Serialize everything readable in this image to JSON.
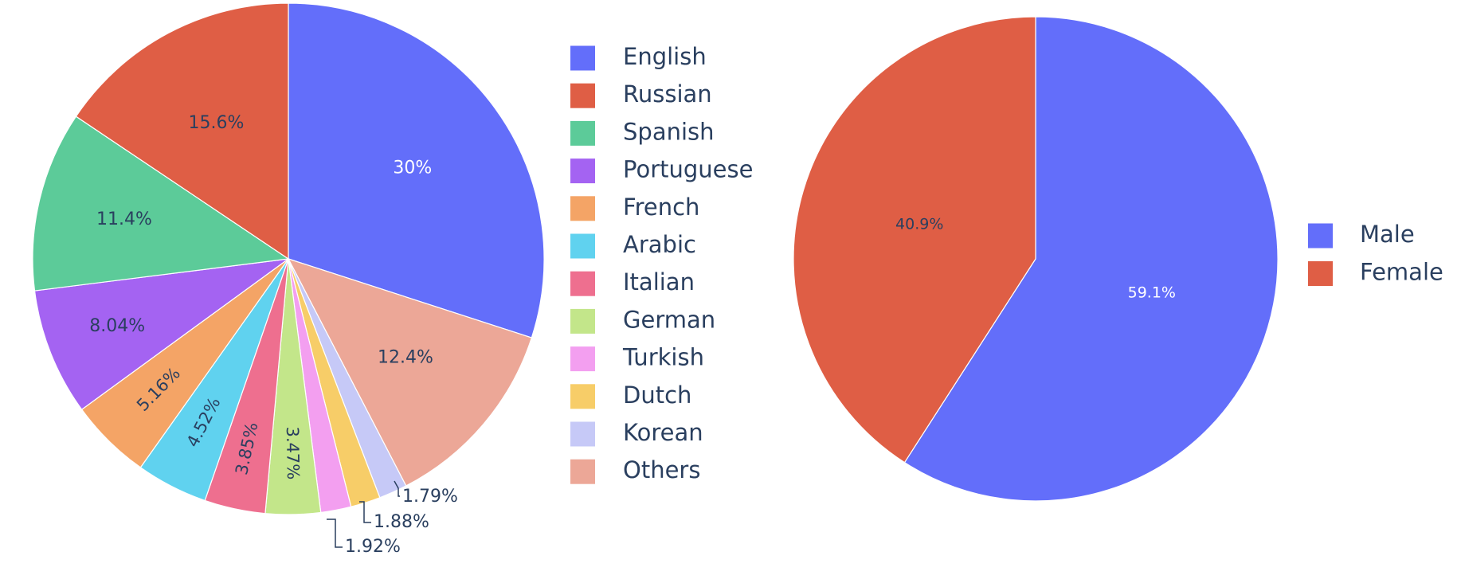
{
  "chart_data": [
    {
      "type": "pie",
      "title": "",
      "legend_placement": "right",
      "slices": [
        {
          "label": "English",
          "value": 30,
          "text": "30%",
          "color": "#636efa"
        },
        {
          "label": "Others",
          "value": 12.4,
          "text": "12.4%",
          "color": "#eca797"
        },
        {
          "label": "Korean",
          "value": 1.79,
          "text": "1.79%",
          "color": "#c6c9f7"
        },
        {
          "label": "Dutch",
          "value": 1.88,
          "text": "1.88%",
          "color": "#f7cd68"
        },
        {
          "label": "Turkish",
          "value": 1.92,
          "text": "1.92%",
          "color": "#f39ff0"
        },
        {
          "label": "German",
          "value": 3.47,
          "text": "3.47%",
          "color": "#c3e68a"
        },
        {
          "label": "Italian",
          "value": 3.85,
          "text": "3.85%",
          "color": "#ee6f8f"
        },
        {
          "label": "Arabic",
          "value": 4.52,
          "text": "4.52%",
          "color": "#60d2ef"
        },
        {
          "label": "French",
          "value": 5.16,
          "text": "5.16%",
          "color": "#f4a466"
        },
        {
          "label": "Portuguese",
          "value": 8.04,
          "text": "8.04%",
          "color": "#a463f2"
        },
        {
          "label": "Spanish",
          "value": 11.4,
          "text": "11.4%",
          "color": "#5ccb99"
        },
        {
          "label": "Russian",
          "value": 15.6,
          "text": "15.6%",
          "color": "#df5e45"
        }
      ],
      "legend": [
        "English",
        "Russian",
        "Spanish",
        "Portuguese",
        "French",
        "Arabic",
        "Italian",
        "German",
        "Turkish",
        "Dutch",
        "Korean",
        "Others"
      ]
    },
    {
      "type": "pie",
      "title": "",
      "legend_placement": "right",
      "slices": [
        {
          "label": "Male",
          "value": 59.1,
          "text": "59.1%",
          "color": "#636efa"
        },
        {
          "label": "Female",
          "value": 40.9,
          "text": "40.9%",
          "color": "#df5e45"
        }
      ],
      "legend": [
        "Male",
        "Female"
      ]
    }
  ]
}
